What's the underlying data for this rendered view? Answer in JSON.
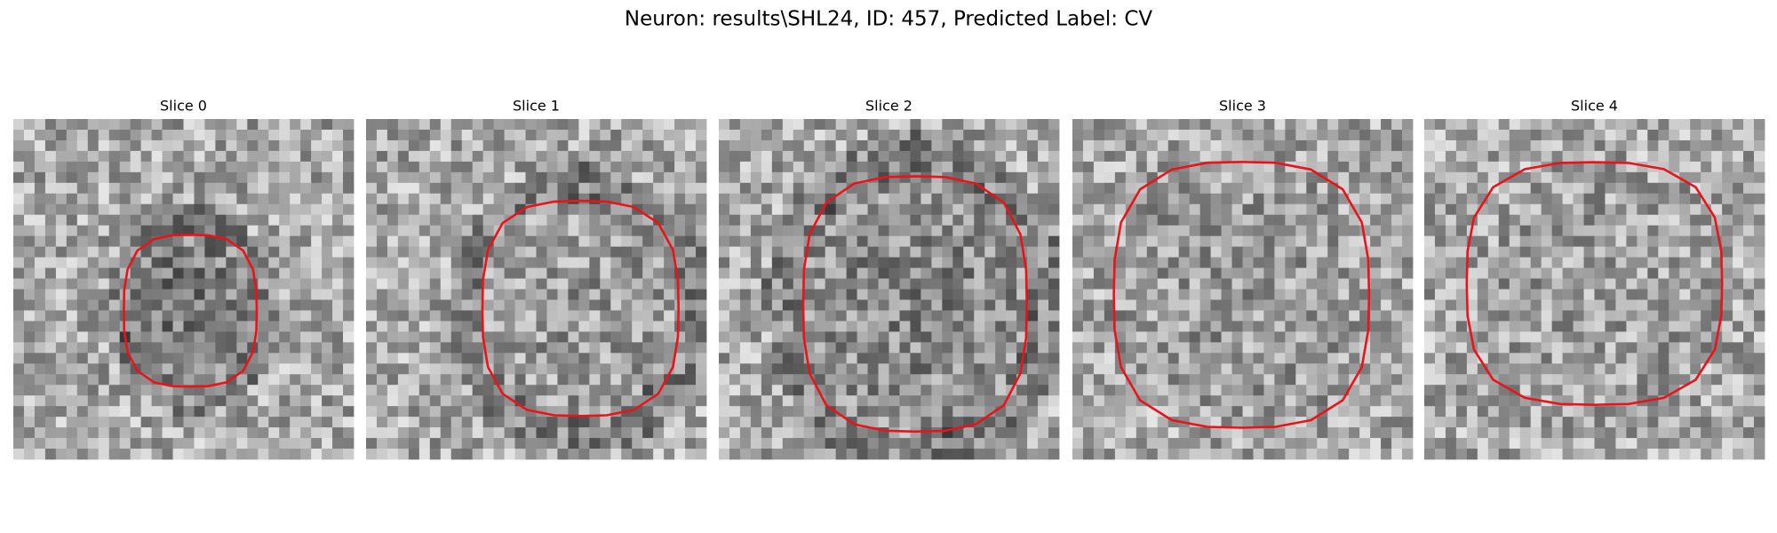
{
  "title": "Neuron: results\\SHL24, ID: 457, Predicted Label: CV",
  "panels": [
    {
      "title": "Slice 0"
    },
    {
      "title": "Slice 1"
    },
    {
      "title": "Slice 2"
    },
    {
      "title": "Slice 3"
    },
    {
      "title": "Slice 4"
    }
  ]
}
